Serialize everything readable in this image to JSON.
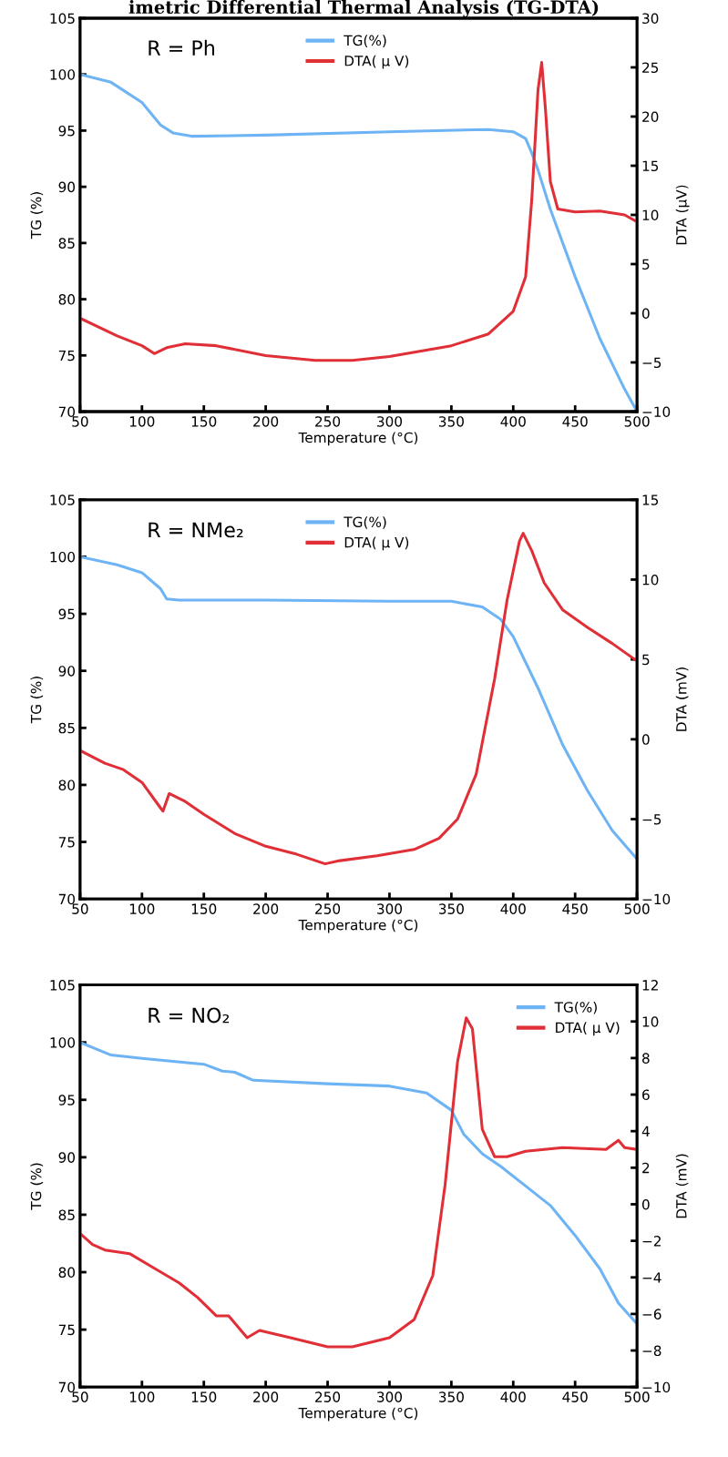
{
  "chart_data": [
    {
      "type": "line",
      "title": "imetric Differential Thermal Analysis (TG-DTA)",
      "xlabel": "Temperature (°C)",
      "ylabel": "TG (%)",
      "y2label": "DTA (μV)",
      "annotations": [
        "R = Ph"
      ],
      "xlim": [
        50,
        500
      ],
      "xticks": [
        50,
        100,
        150,
        200,
        250,
        300,
        350,
        400,
        450,
        500
      ],
      "ylim": [
        70,
        105
      ],
      "yticks": [
        70,
        75,
        80,
        85,
        90,
        95,
        100,
        105
      ],
      "y2lim": [
        -10,
        30
      ],
      "y2ticks": [
        {
          "value": -10,
          "label": "−10"
        },
        {
          "value": -5,
          "label": "−5"
        },
        0,
        5,
        10,
        15,
        20,
        25,
        30
      ],
      "legend": "top",
      "grid": false,
      "series": [
        {
          "name": "TG(%)",
          "color": "#6eb4f5",
          "axis": "y",
          "x": [
            50,
            75,
            100,
            115,
            125,
            140,
            200,
            300,
            380,
            400,
            410,
            415,
            420,
            430,
            450,
            470,
            490,
            500
          ],
          "values": [
            100,
            99.3,
            97.5,
            95.5,
            94.8,
            94.5,
            94.6,
            94.9,
            95.1,
            94.9,
            94.3,
            93,
            91.5,
            88,
            82,
            76.5,
            72,
            70
          ]
        },
        {
          "name": "DTA( μ V)",
          "color": "#e02f36",
          "axis": "y2",
          "x": [
            50,
            80,
            100,
            110,
            120,
            135,
            160,
            200,
            240,
            270,
            300,
            350,
            380,
            400,
            410,
            415,
            420,
            423,
            426,
            430,
            436,
            450,
            470,
            490,
            500
          ],
          "values": [
            -0.5,
            -2.3,
            -3.3,
            -4.1,
            -3.5,
            -3.1,
            -3.3,
            -4.3,
            -4.8,
            -4.8,
            -4.4,
            -3.3,
            -2.1,
            0.2,
            3.7,
            11.6,
            22.7,
            25.5,
            20.8,
            13.4,
            10.6,
            10.3,
            10.4,
            10,
            9.3
          ]
        }
      ]
    },
    {
      "type": "line",
      "xlabel": "Temperature (°C)",
      "ylabel": "TG (%)",
      "y2label": "DTA (mV)",
      "annotations": [
        "R = NMe₂"
      ],
      "xlim": [
        50,
        500
      ],
      "xticks": [
        50,
        100,
        150,
        200,
        250,
        300,
        350,
        400,
        450,
        500
      ],
      "ylim": [
        70,
        105
      ],
      "yticks": [
        70,
        75,
        80,
        85,
        90,
        95,
        100,
        105
      ],
      "y2lim": [
        -10,
        15
      ],
      "y2ticks": [
        {
          "value": -10,
          "label": "−10"
        },
        {
          "value": -5,
          "label": "−5"
        },
        0,
        5,
        10,
        15
      ],
      "legend": "top",
      "grid": false,
      "series": [
        {
          "name": "TG(%)",
          "color": "#6eb4f5",
          "axis": "y",
          "x": [
            50,
            80,
            100,
            115,
            120,
            130,
            200,
            300,
            350,
            375,
            390,
            400,
            420,
            440,
            460,
            480,
            500
          ],
          "values": [
            100,
            99.3,
            98.6,
            97.2,
            96.3,
            96.2,
            96.2,
            96.1,
            96.1,
            95.6,
            94.5,
            93,
            88.5,
            83.5,
            79.5,
            76,
            73.5
          ]
        },
        {
          "name": "DTA( μ V)",
          "color": "#e02f36",
          "axis": "y2",
          "x": [
            50,
            70,
            85,
            100,
            115,
            117,
            122,
            135,
            150,
            175,
            200,
            225,
            248,
            260,
            290,
            320,
            340,
            355,
            370,
            385,
            395,
            405,
            408,
            415,
            425,
            440,
            460,
            480,
            500
          ],
          "values": [
            -0.7,
            -1.5,
            -1.9,
            -2.7,
            -4.3,
            -4.5,
            -3.4,
            -3.9,
            -4.7,
            -5.9,
            -6.7,
            -7.2,
            -7.8,
            -7.6,
            -7.3,
            -6.9,
            -6.2,
            -5,
            -2.2,
            3.8,
            8.7,
            12.4,
            12.9,
            11.8,
            9.8,
            8.1,
            7,
            6,
            4.9
          ]
        }
      ]
    },
    {
      "type": "line",
      "xlabel": "Temperature (°C)",
      "ylabel": "TG (%)",
      "y2label": "DTA (mV)",
      "annotations": [
        "R = NO₂"
      ],
      "xlim": [
        50,
        500
      ],
      "xticks": [
        50,
        100,
        150,
        200,
        250,
        300,
        350,
        400,
        450,
        500
      ],
      "ylim": [
        70,
        105
      ],
      "yticks": [
        70,
        75,
        80,
        85,
        90,
        95,
        100,
        105
      ],
      "y2lim": [
        -10,
        12
      ],
      "y2ticks": [
        {
          "value": -10,
          "label": "−10"
        },
        {
          "value": -8,
          "label": "−8"
        },
        {
          "value": -6,
          "label": "−6"
        },
        {
          "value": -4,
          "label": "−4"
        },
        {
          "value": -2,
          "label": "−2"
        },
        0,
        2,
        4,
        6,
        8,
        10,
        12
      ],
      "legend": "top right",
      "grid": false,
      "series": [
        {
          "name": "TG(%)",
          "color": "#6eb4f5",
          "axis": "y",
          "x": [
            50,
            75,
            100,
            150,
            165,
            175,
            190,
            250,
            300,
            330,
            350,
            360,
            375,
            390,
            410,
            430,
            450,
            470,
            485,
            500
          ],
          "values": [
            100,
            98.9,
            98.6,
            98.1,
            97.5,
            97.4,
            96.7,
            96.4,
            96.2,
            95.6,
            94.1,
            92,
            90.3,
            89.2,
            87.5,
            85.8,
            83.2,
            80.3,
            77.3,
            75.5
          ]
        },
        {
          "name": "DTA( μ V)",
          "color": "#e02f36",
          "axis": "y2",
          "x": [
            50,
            60,
            70,
            90,
            110,
            130,
            145,
            160,
            170,
            185,
            195,
            220,
            250,
            270,
            300,
            320,
            335,
            345,
            355,
            362,
            367,
            375,
            385,
            395,
            410,
            440,
            475,
            485,
            490,
            500
          ],
          "values": [
            -1.6,
            -2.2,
            -2.5,
            -2.7,
            -3.5,
            -4.3,
            -5.1,
            -6.1,
            -6.1,
            -7.3,
            -6.9,
            -7.3,
            -7.8,
            -7.8,
            -7.3,
            -6.3,
            -3.9,
            1.1,
            7.8,
            10.2,
            9.6,
            4.1,
            2.6,
            2.6,
            2.9,
            3.1,
            3,
            3.5,
            3.1,
            3
          ]
        }
      ]
    }
  ]
}
